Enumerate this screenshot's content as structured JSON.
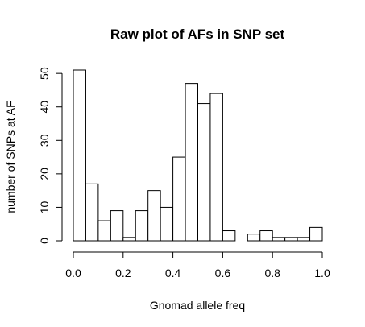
{
  "chart_data": {
    "type": "bar",
    "title": "Raw plot of AFs in SNP set",
    "xlabel": "Gnomad allele freq",
    "ylabel": "number of SNPs at AF",
    "bins": [
      {
        "start": 0.0,
        "end": 0.05,
        "count": 51
      },
      {
        "start": 0.05,
        "end": 0.1,
        "count": 17
      },
      {
        "start": 0.1,
        "end": 0.15,
        "count": 6
      },
      {
        "start": 0.15,
        "end": 0.2,
        "count": 9
      },
      {
        "start": 0.2,
        "end": 0.25,
        "count": 1
      },
      {
        "start": 0.25,
        "end": 0.3,
        "count": 9
      },
      {
        "start": 0.3,
        "end": 0.35,
        "count": 15
      },
      {
        "start": 0.35,
        "end": 0.4,
        "count": 10
      },
      {
        "start": 0.4,
        "end": 0.45,
        "count": 25
      },
      {
        "start": 0.45,
        "end": 0.5,
        "count": 47
      },
      {
        "start": 0.5,
        "end": 0.55,
        "count": 41
      },
      {
        "start": 0.55,
        "end": 0.6,
        "count": 44
      },
      {
        "start": 0.6,
        "end": 0.65,
        "count": 3
      },
      {
        "start": 0.65,
        "end": 0.7,
        "count": 0
      },
      {
        "start": 0.7,
        "end": 0.75,
        "count": 2
      },
      {
        "start": 0.75,
        "end": 0.8,
        "count": 3
      },
      {
        "start": 0.8,
        "end": 0.85,
        "count": 1
      },
      {
        "start": 0.85,
        "end": 0.9,
        "count": 1
      },
      {
        "start": 0.9,
        "end": 0.95,
        "count": 1
      },
      {
        "start": 0.95,
        "end": 1.0,
        "count": 4
      }
    ],
    "xlim": [
      0,
      1
    ],
    "ylim": [
      0,
      51
    ],
    "x_ticks": [
      0.0,
      0.2,
      0.4,
      0.6,
      0.8,
      1.0
    ],
    "x_tick_labels": [
      "0.0",
      "0.2",
      "0.4",
      "0.6",
      "0.8",
      "1.0"
    ],
    "y_ticks": [
      0,
      10,
      20,
      30,
      40,
      50
    ],
    "y_tick_labels": [
      "0",
      "10",
      "20",
      "30",
      "40",
      "50"
    ],
    "grid": false,
    "bar_fill": "#ffffff",
    "bar_stroke": "#000000"
  }
}
